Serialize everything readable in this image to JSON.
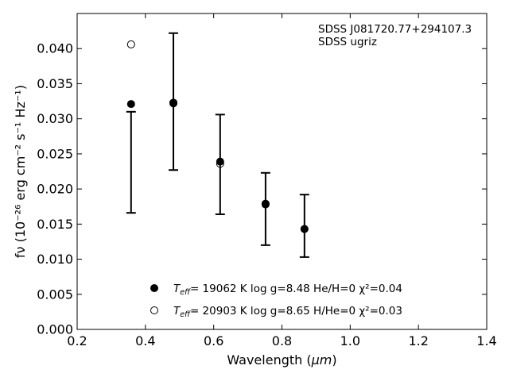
{
  "chart_data": {
    "type": "scatter",
    "title": "",
    "xlabel_main": "Wavelength (",
    "xlabel_unit": "μm",
    "xlabel_close": ")",
    "ylabel": "fν (10⁻²⁶ erg cm⁻² s⁻¹ Hz⁻¹)",
    "xlim": [
      0.2,
      1.4
    ],
    "ylim": [
      0.0,
      0.045
    ],
    "xticks": [
      "0.2",
      "0.4",
      "0.6",
      "0.8",
      "1.0",
      "1.2",
      "1.4"
    ],
    "yticks": [
      "0.000",
      "0.005",
      "0.010",
      "0.015",
      "0.020",
      "0.025",
      "0.030",
      "0.035",
      "0.040"
    ],
    "annotations": [
      "SDSS J081720.77+294107.3",
      "SDSS ugriz"
    ],
    "observed": {
      "x": [
        0.358,
        0.482,
        0.619,
        0.752,
        0.866
      ],
      "y": [
        0.0238,
        0.0324,
        0.0235,
        0.0172,
        0.0148
      ],
      "err_low": [
        0.0166,
        0.0227,
        0.0164,
        0.012,
        0.0103
      ],
      "err_high": [
        0.031,
        0.0422,
        0.0306,
        0.0223,
        0.0192
      ]
    },
    "series": [
      {
        "marker": "filled",
        "legend_prefix": "T",
        "legend_sub": "eff",
        "legend_rest": "= 19062 K  log g=8.48  He/H=0  χ²=0.04",
        "x": [
          0.358,
          0.482,
          0.619,
          0.752,
          0.866
        ],
        "y": [
          0.0321,
          0.0322,
          0.0239,
          0.0179,
          0.0143
        ]
      },
      {
        "marker": "open",
        "legend_prefix": "T",
        "legend_sub": "eff",
        "legend_rest": "= 20903 K  log g=8.65  H/He=0  χ²=0.03",
        "x": [
          0.358,
          0.482,
          0.619,
          0.752,
          0.866
        ],
        "y": [
          0.0406,
          0.0323,
          0.0236,
          0.0178,
          0.0143
        ]
      }
    ],
    "legend_position": "lower-center",
    "grid": false
  }
}
